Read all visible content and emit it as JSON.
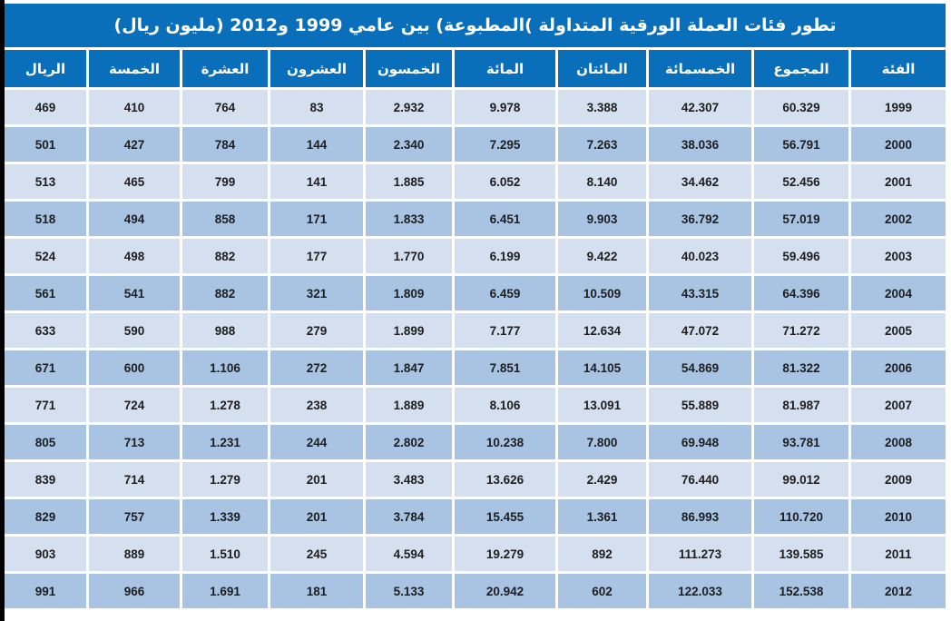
{
  "title": "تطور فئات العملة الورقية المتداولة )المطبوعة) بين عامي 1999 و2012 (مليون ريال)",
  "colors": {
    "header_blue": "#0a6fba",
    "row_light": "#d4dff0",
    "row_dark": "#a9c3e3",
    "text_dark": "#1e1e1e",
    "header_text": "#ffffff"
  },
  "table": {
    "headers": [
      "الريال",
      "الخمسة",
      "العشرة",
      "العشرون",
      "الخمسون",
      "المائة",
      "المائتان",
      "الخمسمائة",
      "المجموع",
      "الفئة"
    ],
    "rows": [
      [
        "469",
        "410",
        "764",
        "83",
        "2.932",
        "9.978",
        "3.388",
        "42.307",
        "60.329",
        "1999"
      ],
      [
        "501",
        "427",
        "784",
        "144",
        "2.340",
        "7.295",
        "7.263",
        "38.036",
        "56.791",
        "2000"
      ],
      [
        "513",
        "465",
        "799",
        "141",
        "1.885",
        "6.052",
        "8.140",
        "34.462",
        "52.456",
        "2001"
      ],
      [
        "518",
        "494",
        "858",
        "171",
        "1.833",
        "6.451",
        "9.903",
        "36.792",
        "57.019",
        "2002"
      ],
      [
        "524",
        "498",
        "882",
        "177",
        "1.770",
        "6.199",
        "9.422",
        "40.023",
        "59.496",
        "2003"
      ],
      [
        "561",
        "541",
        "882",
        "321",
        "1.809",
        "6.459",
        "10.509",
        "43.315",
        "64.396",
        "2004"
      ],
      [
        "633",
        "590",
        "988",
        "279",
        "1.899",
        "7.177",
        "12.634",
        "47.072",
        "71.272",
        "2005"
      ],
      [
        "671",
        "600",
        "1.106",
        "272",
        "1.847",
        "7.851",
        "14.105",
        "54.869",
        "81.322",
        "2006"
      ],
      [
        "771",
        "724",
        "1.278",
        "238",
        "1.889",
        "8.106",
        "13.091",
        "55.889",
        "81.987",
        "2007"
      ],
      [
        "805",
        "713",
        "1.231",
        "244",
        "2.802",
        "10.238",
        "7.800",
        "69.948",
        "93.781",
        "2008"
      ],
      [
        "839",
        "714",
        "1.279",
        "201",
        "3.483",
        "13.626",
        "2.429",
        "76.440",
        "99.012",
        "2009"
      ],
      [
        "829",
        "757",
        "1.339",
        "201",
        "3.784",
        "15.455",
        "1.361",
        "86.993",
        "110.720",
        "2010"
      ],
      [
        "903",
        "889",
        "1.510",
        "245",
        "4.594",
        "19.279",
        "892",
        "111.273",
        "139.585",
        "2011"
      ],
      [
        "991",
        "966",
        "1.691",
        "181",
        "5.133",
        "20.942",
        "602",
        "122.033",
        "152.538",
        "2012"
      ]
    ]
  }
}
